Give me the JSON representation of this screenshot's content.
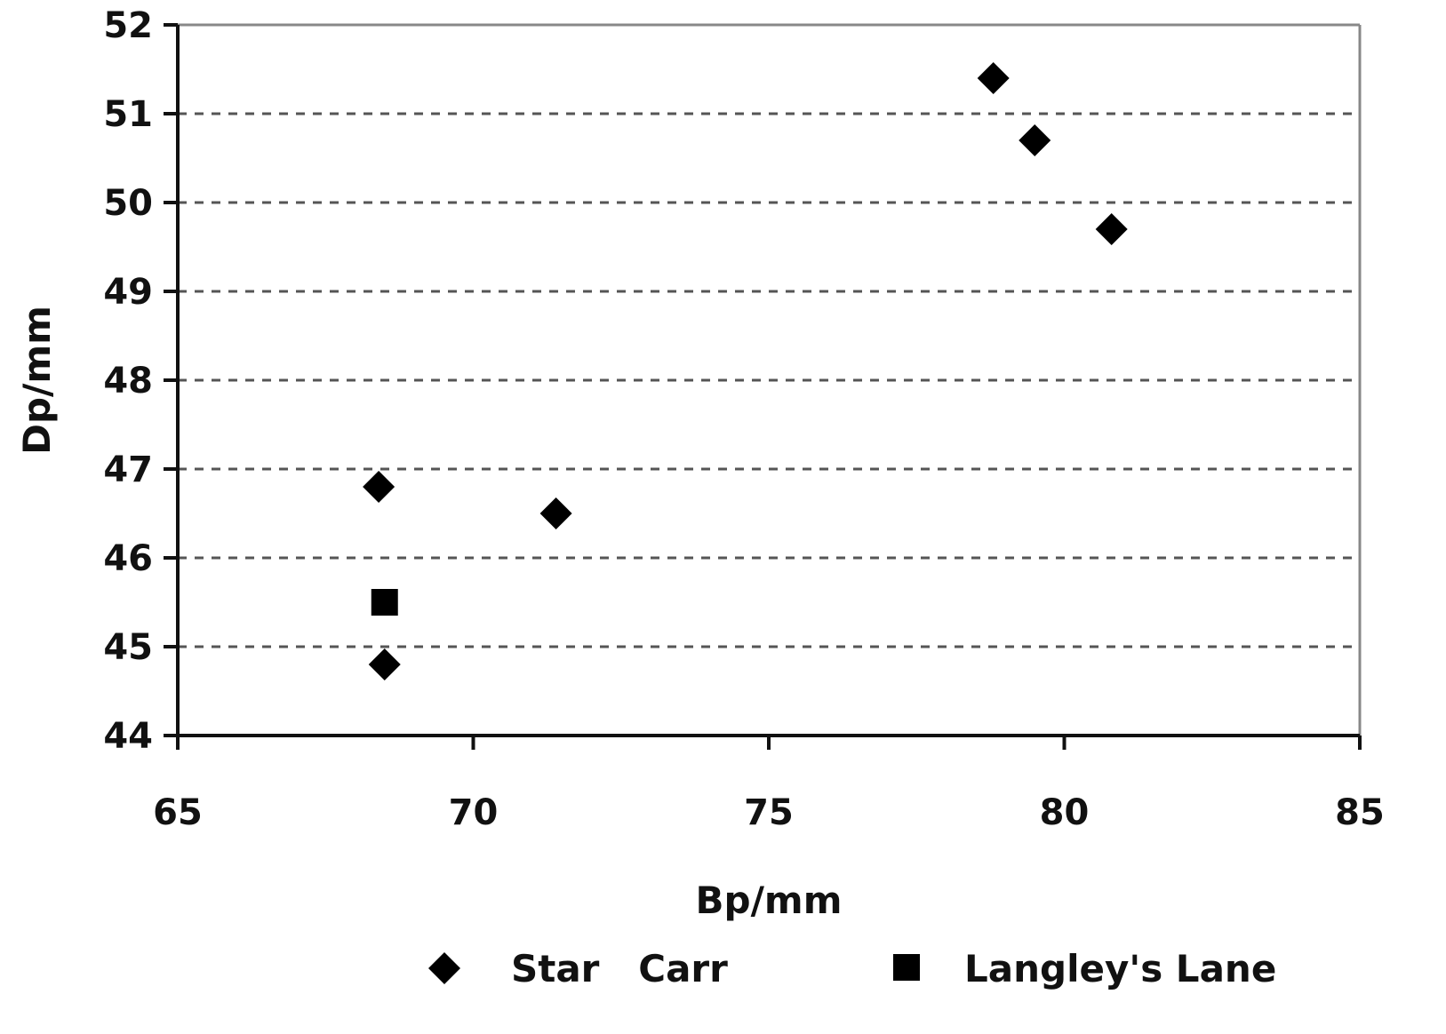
{
  "chart_data": {
    "type": "scatter",
    "title": "",
    "xlabel": "Bp/mm",
    "ylabel": "Dp/mm",
    "xlim": [
      65,
      85
    ],
    "ylim": [
      44,
      52
    ],
    "x_ticks": [
      65,
      70,
      75,
      80,
      85
    ],
    "y_ticks": [
      44,
      45,
      46,
      47,
      48,
      49,
      50,
      51,
      52
    ],
    "grid": "horizontal-dashed",
    "legend_position": "bottom",
    "series": [
      {
        "name": "Star   Carr",
        "marker": "diamond",
        "color": "#000000",
        "points": [
          {
            "x": 78.8,
            "y": 51.4
          },
          {
            "x": 79.5,
            "y": 50.7
          },
          {
            "x": 80.8,
            "y": 49.7
          },
          {
            "x": 68.4,
            "y": 46.8
          },
          {
            "x": 71.4,
            "y": 46.5
          },
          {
            "x": 68.5,
            "y": 44.8
          }
        ]
      },
      {
        "name": "Langley's Lane",
        "marker": "square",
        "color": "#000000",
        "points": [
          {
            "x": 68.5,
            "y": 45.5
          }
        ]
      }
    ]
  }
}
